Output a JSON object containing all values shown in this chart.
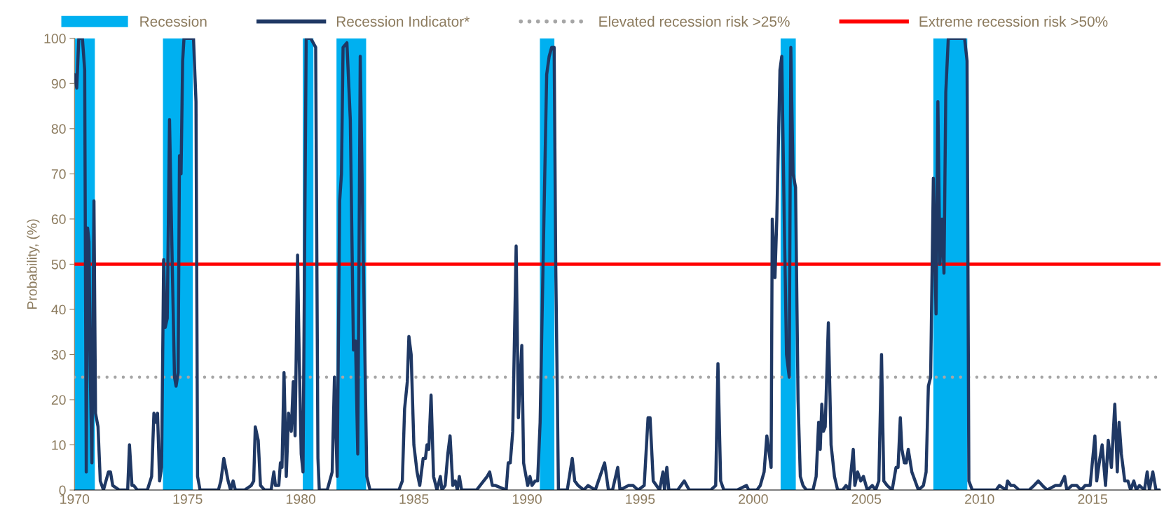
{
  "chart_data": {
    "type": "line",
    "ylabel": "Probability, (%)",
    "xlim": [
      1970,
      2018
    ],
    "xticks": [
      1970,
      1975,
      1980,
      1985,
      1990,
      1995,
      2000,
      2005,
      2010,
      2015
    ],
    "ylim": [
      0,
      100
    ],
    "yticks": [
      0,
      10,
      20,
      30,
      40,
      50,
      60,
      70,
      80,
      90,
      100
    ],
    "grid": false,
    "legend": "top",
    "marker": "none",
    "line_style": "solid",
    "series": [
      {
        "name": "Recession Indicator*",
        "color": "#1f3864",
        "x": [
          1970.0,
          1970.1,
          1970.19,
          1970.35,
          1970.45,
          1970.52,
          1970.58,
          1970.64,
          1970.7,
          1970.77,
          1970.86,
          1970.93,
          1971.04,
          1971.14,
          1971.28,
          1971.5,
          1971.59,
          1971.69,
          1971.98,
          1972.35,
          1972.43,
          1972.54,
          1972.62,
          1972.78,
          1973.22,
          1973.41,
          1973.51,
          1973.59,
          1973.67,
          1973.76,
          1973.85,
          1973.94,
          1974.01,
          1974.1,
          1974.2,
          1974.32,
          1974.42,
          1974.49,
          1974.58,
          1974.64,
          1974.71,
          1974.78,
          1974.84,
          1975.26,
          1975.37,
          1975.44,
          1975.55,
          1976.36,
          1976.47,
          1976.6,
          1976.79,
          1976.9,
          1977.01,
          1977.11,
          1977.52,
          1977.81,
          1977.92,
          1977.99,
          1978.12,
          1978.22,
          1978.4,
          1978.69,
          1978.81,
          1978.88,
          1979.03,
          1979.1,
          1979.17,
          1979.26,
          1979.36,
          1979.46,
          1979.58,
          1979.67,
          1979.75,
          1979.86,
          1979.93,
          1980.02,
          1980.1,
          1980.24,
          1980.44,
          1980.66,
          1980.76,
          1980.82,
          1981.17,
          1981.39,
          1981.49,
          1981.61,
          1981.72,
          1981.8,
          1981.87,
          1982.04,
          1982.19,
          1982.33,
          1982.42,
          1982.52,
          1982.63,
          1982.77,
          1982.92,
          1983.06,
          1984.34,
          1984.49,
          1984.59,
          1984.71,
          1984.78,
          1984.88,
          1985.0,
          1985.14,
          1985.26,
          1985.41,
          1985.51,
          1985.58,
          1985.66,
          1985.76,
          1985.87,
          1986.02,
          1986.17,
          1986.24,
          1986.38,
          1986.5,
          1986.6,
          1986.72,
          1986.83,
          1986.92,
          1987.01,
          1987.11,
          1987.77,
          1988.24,
          1988.35,
          1988.47,
          1988.61,
          1989.08,
          1989.17,
          1989.26,
          1989.37,
          1989.52,
          1989.62,
          1989.69,
          1989.77,
          1989.85,
          1990.03,
          1990.13,
          1990.22,
          1990.36,
          1990.47,
          1990.58,
          1990.71,
          1990.87,
          1990.98,
          1991.09,
          1991.2,
          1991.27,
          1991.39,
          1991.78,
          1992.0,
          1992.11,
          1992.26,
          1992.51,
          1992.7,
          1993.02,
          1993.43,
          1993.6,
          1993.78,
          1994.01,
          1994.11,
          1994.48,
          1994.69,
          1994.91,
          1995.18,
          1995.35,
          1995.44,
          1995.58,
          1995.86,
          1996.01,
          1996.08,
          1996.18,
          1996.27,
          1996.66,
          1996.95,
          1997.17,
          1997.61,
          1998.12,
          1998.34,
          1998.44,
          1998.56,
          1998.7,
          1999.29,
          1999.7,
          1999.8,
          2000.16,
          2000.31,
          2000.48,
          2000.6,
          2000.79,
          2000.84,
          2000.96,
          2001.04,
          2001.18,
          2001.26,
          2001.37,
          2001.47,
          2001.59,
          2001.66,
          2001.76,
          2001.87,
          2001.98,
          2002.08,
          2002.2,
          2002.35,
          2002.64,
          2002.78,
          2002.89,
          2002.96,
          2003.03,
          2003.1,
          2003.18,
          2003.32,
          2003.44,
          2003.59,
          2003.73,
          2003.95,
          2004.1,
          2004.24,
          2004.42,
          2004.49,
          2004.61,
          2004.75,
          2004.87,
          2005.04,
          2005.26,
          2005.41,
          2005.55,
          2005.67,
          2005.77,
          2005.92,
          2006.14,
          2006.31,
          2006.4,
          2006.5,
          2006.57,
          2006.68,
          2006.76,
          2006.85,
          2007.01,
          2007.3,
          2007.52,
          2007.64,
          2007.74,
          2007.84,
          2007.96,
          2008.08,
          2008.16,
          2008.25,
          2008.34,
          2008.43,
          2008.51,
          2008.62,
          2009.34,
          2009.45,
          2009.53,
          2009.68,
          2010.73,
          2010.88,
          2011.17,
          2011.24,
          2011.39,
          2011.53,
          2011.75,
          2012.19,
          2012.41,
          2012.6,
          2012.78,
          2012.99,
          2013.35,
          2013.57,
          2013.76,
          2013.86,
          2014.08,
          2014.3,
          2014.49,
          2014.67,
          2014.89,
          2015.1,
          2015.18,
          2015.32,
          2015.42,
          2015.57,
          2015.69,
          2015.83,
          2015.98,
          2016.09,
          2016.17,
          2016.27,
          2016.42,
          2016.56,
          2016.68,
          2016.82,
          2016.93,
          2017.07,
          2017.29,
          2017.41,
          2017.51,
          2017.66,
          2017.8,
          2017.96
        ],
        "values": [
          92,
          89,
          100,
          100,
          93,
          4,
          58,
          55,
          25,
          6,
          64,
          17,
          14,
          2,
          0,
          4,
          4,
          1,
          0,
          0,
          10,
          1,
          1,
          0,
          0,
          3,
          17,
          15,
          17,
          2,
          5,
          51,
          36,
          38,
          82,
          50,
          25,
          23,
          26,
          74,
          70,
          95,
          100,
          100,
          86,
          3,
          0,
          0,
          2,
          7,
          2,
          0,
          2,
          0,
          0,
          1,
          2,
          14,
          11,
          1,
          0,
          0,
          4,
          1,
          1,
          6,
          5,
          26,
          3,
          17,
          13,
          24,
          12,
          52,
          30,
          8,
          4,
          100,
          100,
          98,
          7,
          0,
          0,
          4,
          25,
          3,
          64,
          70,
          98,
          99,
          82,
          31,
          33,
          8,
          96,
          50,
          3,
          0,
          0,
          2,
          18,
          24,
          34,
          30,
          10,
          4,
          1,
          7,
          7,
          10,
          9,
          21,
          3,
          0,
          3,
          0,
          1,
          8,
          12,
          1,
          2,
          0,
          3,
          0,
          0,
          3,
          4,
          1,
          1,
          0,
          6,
          6,
          13,
          54,
          16,
          24,
          32,
          6,
          1,
          3,
          1,
          2,
          2,
          15,
          50,
          92,
          96,
          98,
          98,
          50,
          0,
          0,
          7,
          2,
          1,
          0,
          1,
          0,
          6,
          0,
          0,
          5,
          0,
          1,
          1,
          0,
          1,
          16,
          16,
          2,
          0,
          4,
          0,
          5,
          0,
          0,
          2,
          0,
          0,
          0,
          1,
          28,
          2,
          0,
          0,
          1,
          0,
          0,
          1,
          4,
          12,
          5,
          60,
          47,
          60,
          93,
          96,
          60,
          30,
          25,
          98,
          70,
          67,
          20,
          3,
          1,
          0,
          0,
          3,
          15,
          9,
          19,
          13,
          14,
          37,
          10,
          3,
          0,
          0,
          1,
          0,
          9,
          1,
          4,
          2,
          3,
          0,
          1,
          0,
          2,
          30,
          2,
          1,
          0,
          5,
          5,
          16,
          9,
          6,
          6,
          9,
          4,
          0,
          1,
          4,
          23,
          25,
          69,
          39,
          86,
          50,
          60,
          48,
          88,
          100,
          100,
          95,
          2,
          0,
          0,
          1,
          0,
          2,
          1,
          1,
          0,
          0,
          1,
          2,
          1,
          0,
          1,
          1,
          3,
          0,
          1,
          1,
          0,
          1,
          1,
          12,
          2,
          7,
          10,
          1,
          11,
          5,
          19,
          4,
          15,
          8,
          2,
          2,
          0,
          2,
          0,
          1,
          0,
          4,
          0,
          4,
          0,
          0
        ]
      }
    ],
    "bands": [
      {
        "axis": "x",
        "from": 1970.0,
        "to": 1970.9,
        "label": "Recession",
        "color": "#00b0f0"
      },
      {
        "axis": "x",
        "from": 1973.91,
        "to": 1975.23,
        "color": "#00b0f0"
      },
      {
        "axis": "x",
        "from": 1980.09,
        "to": 1980.56,
        "color": "#00b0f0"
      },
      {
        "axis": "x",
        "from": 1981.58,
        "to": 1982.89,
        "color": "#00b0f0"
      },
      {
        "axis": "x",
        "from": 1990.57,
        "to": 1991.21,
        "color": "#00b0f0"
      },
      {
        "axis": "x",
        "from": 2001.21,
        "to": 2001.88,
        "color": "#00b0f0"
      },
      {
        "axis": "x",
        "from": 2007.96,
        "to": 2009.46,
        "color": "#00b0f0"
      }
    ],
    "ref_lines": [
      {
        "axis": "y",
        "value": 25,
        "label": "Elevated recession risk >25%",
        "color": "#a6a6a6",
        "line_style": "dotted"
      },
      {
        "axis": "y",
        "value": 50,
        "label": "Extreme recession risk >50%",
        "color": "#ff0000",
        "line_style": "solid"
      }
    ]
  }
}
